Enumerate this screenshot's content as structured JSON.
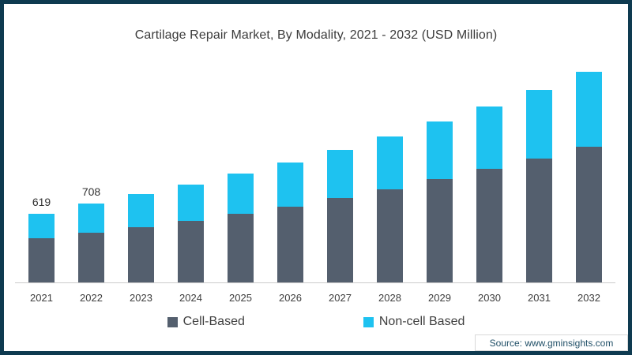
{
  "chart_data": {
    "type": "bar",
    "stacked": true,
    "title": "Cartilage Repair Market, By Modality, 2021 - 2032 (USD Million)",
    "xlabel": "",
    "ylabel": "USD Million",
    "ylim": [
      0,
      1900
    ],
    "grid": false,
    "legend_position": "bottom",
    "categories": [
      "2021",
      "2022",
      "2023",
      "2024",
      "2025",
      "2026",
      "2027",
      "2028",
      "2029",
      "2030",
      "2031",
      "2032"
    ],
    "series": [
      {
        "name": "Cell-Based",
        "color": "#545F6E",
        "values": [
          395,
          444,
          499,
          552,
          618,
          683,
          759,
          838,
          928,
          1018,
          1110,
          1221
        ]
      },
      {
        "name": "Non-cell Based",
        "color": "#1EC2F0",
        "values": [
          224,
          264,
          293,
          325,
          357,
          394,
          429,
          472,
          518,
          566,
          622,
          672
        ]
      }
    ],
    "totals": [
      619,
      708,
      792,
      877,
      975,
      1077,
      1188,
      1310,
      1446,
      1584,
      1732,
      1893
    ],
    "total_labels": {
      "2021": "619",
      "2022": "708"
    }
  },
  "frame": {
    "border_color": "#0E3A50",
    "axis_line_color": "#cccccc"
  },
  "source": {
    "text": "Source: www.gminsights.com"
  }
}
